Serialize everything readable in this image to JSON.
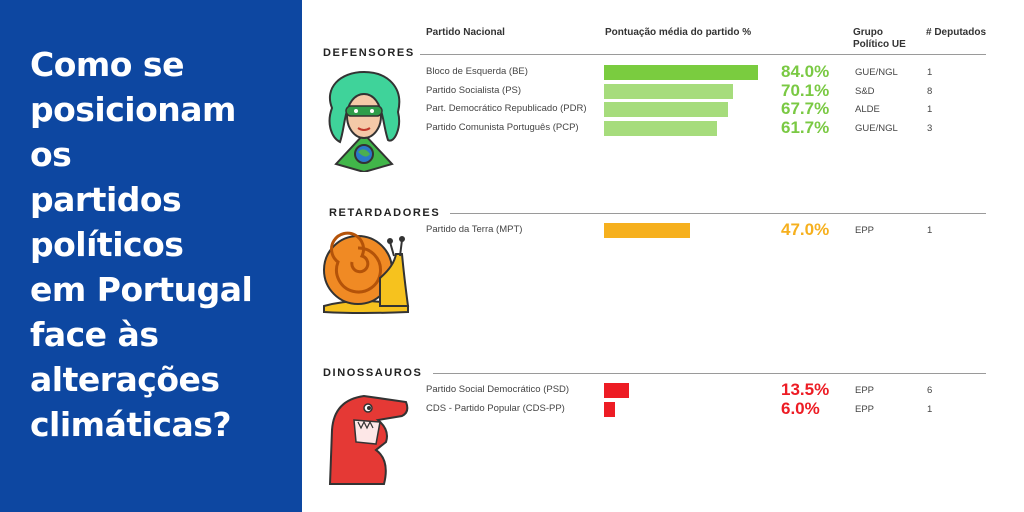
{
  "title": "Como se\nposicionam\nos\npartidos\npolíticos\nem Portugal\nface às\nalterações\nclimáticas?",
  "headers": {
    "party": "Partido Nacional",
    "score": "Pontuação média do partido %",
    "group": "Grupo\nPolítico UE",
    "deputies": "# Deputados"
  },
  "colors": {
    "panel": "#0d47a1",
    "defensores_top": "#7acc3f",
    "defensores": "#a6dc7c",
    "defensores_text": "#7ac943",
    "retardadores": "#f6b01e",
    "dinossauros": "#ed1c24"
  },
  "icons": [
    "superhero-icon",
    "snail-icon",
    "dinosaur-icon"
  ],
  "chart_data": {
    "type": "bar",
    "orientation": "horizontal",
    "unit": "%",
    "groups": [
      {
        "name": "DEFENSORES",
        "rows": [
          {
            "party": "Bloco de Esquerda (BE)",
            "value": 84.0,
            "label": "84.0%",
            "group": "GUE/NGL",
            "deputies": "1"
          },
          {
            "party": "Partido Socialista (PS)",
            "value": 70.1,
            "label": "70.1%",
            "group": "S&D",
            "deputies": "8"
          },
          {
            "party": "Part. Democrático Republicado (PDR)",
            "value": 67.7,
            "label": "67.7%",
            "group": "ALDE",
            "deputies": "1"
          },
          {
            "party": "Partido Comunista Português (PCP)",
            "value": 61.7,
            "label": "61.7%",
            "group": "GUE/NGL",
            "deputies": "3"
          }
        ]
      },
      {
        "name": "RETARDADORES",
        "rows": [
          {
            "party": "Partido da Terra (MPT)",
            "value": 47.0,
            "label": "47.0%",
            "group": "EPP",
            "deputies": "1"
          }
        ]
      },
      {
        "name": "DINOSSAUROS",
        "rows": [
          {
            "party": "Partido  Social  Democrático  (PSD)",
            "value": 13.5,
            "label": "13.5%",
            "group": "EPP",
            "deputies": "6"
          },
          {
            "party": "CDS - Partido Popular (CDS-PP)",
            "value": 6.0,
            "label": "6.0%",
            "group": "EPP",
            "deputies": "1"
          }
        ]
      }
    ]
  }
}
